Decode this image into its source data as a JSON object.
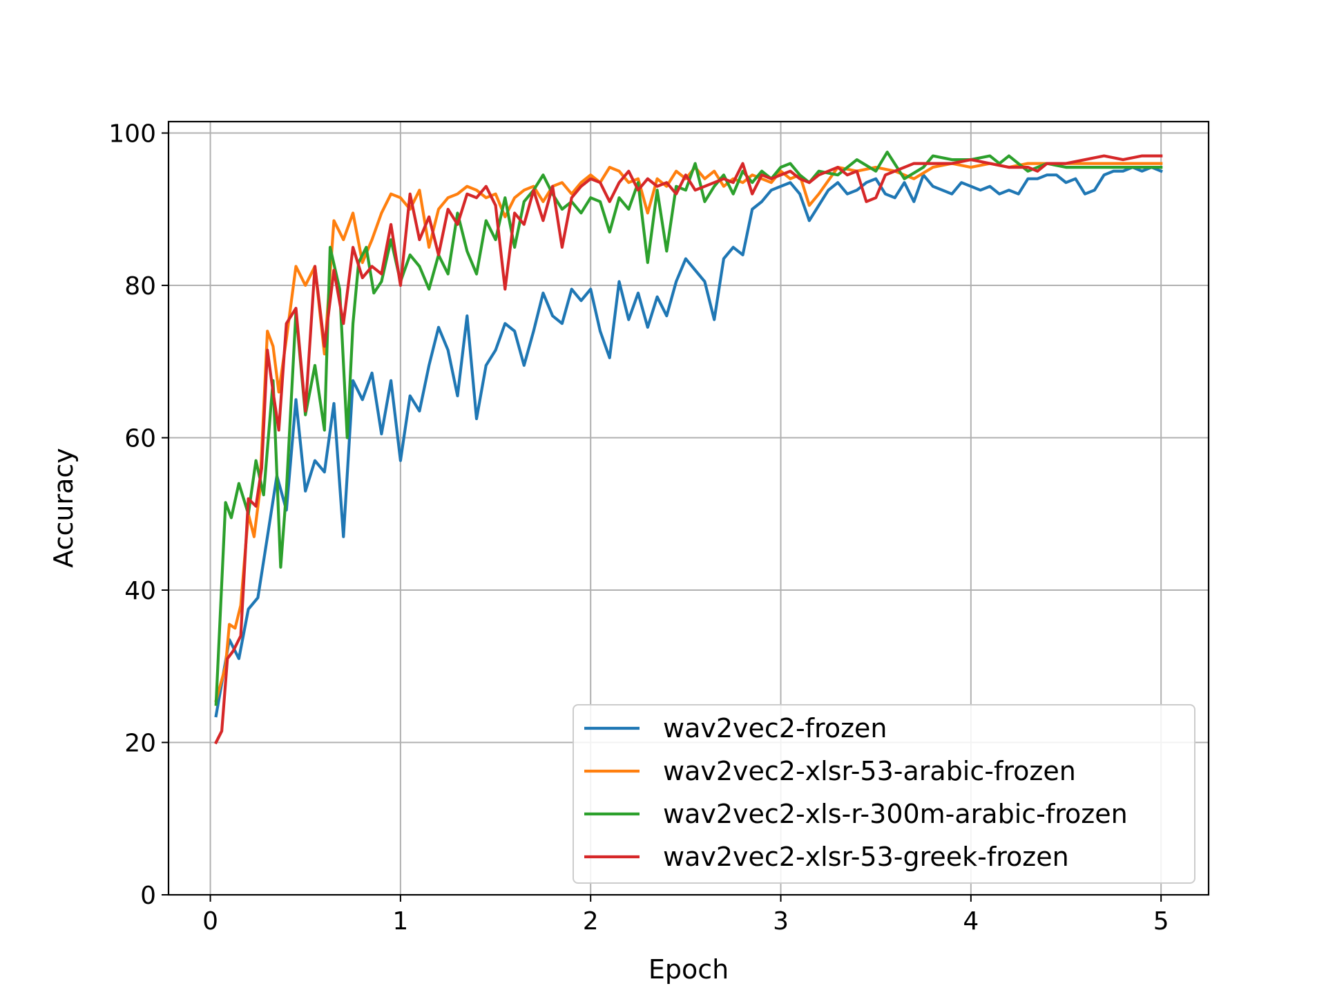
{
  "chart_data": {
    "type": "line",
    "title": "",
    "xlabel": "Epoch",
    "ylabel": "Accuracy",
    "xlim": [
      -0.22,
      5.25
    ],
    "ylim": [
      0,
      101.5
    ],
    "xticks": [
      0,
      1,
      2,
      3,
      4,
      5
    ],
    "yticks": [
      0,
      20,
      40,
      60,
      80,
      100
    ],
    "grid": true,
    "legend_position": "lower right",
    "series": [
      {
        "name": "wav2vec2-frozen",
        "color": "#1f77b4",
        "x": [
          0.03,
          0.1,
          0.15,
          0.2,
          0.25,
          0.3,
          0.35,
          0.4,
          0.45,
          0.5,
          0.55,
          0.6,
          0.65,
          0.7,
          0.75,
          0.8,
          0.85,
          0.9,
          0.95,
          1.0,
          1.05,
          1.1,
          1.15,
          1.2,
          1.25,
          1.3,
          1.35,
          1.4,
          1.45,
          1.5,
          1.55,
          1.6,
          1.65,
          1.7,
          1.75,
          1.8,
          1.85,
          1.9,
          1.95,
          2.0,
          2.05,
          2.1,
          2.15,
          2.2,
          2.25,
          2.3,
          2.35,
          2.4,
          2.45,
          2.5,
          2.55,
          2.6,
          2.65,
          2.7,
          2.75,
          2.8,
          2.85,
          2.9,
          2.95,
          3.0,
          3.05,
          3.1,
          3.15,
          3.2,
          3.25,
          3.3,
          3.35,
          3.4,
          3.45,
          3.5,
          3.55,
          3.6,
          3.65,
          3.7,
          3.75,
          3.8,
          3.85,
          3.9,
          3.95,
          4.0,
          4.05,
          4.1,
          4.15,
          4.2,
          4.25,
          4.3,
          4.35,
          4.4,
          4.45,
          4.5,
          4.55,
          4.6,
          4.65,
          4.7,
          4.75,
          4.8,
          4.85,
          4.9,
          4.95,
          5.0
        ],
        "y": [
          23.5,
          33.5,
          31.0,
          37.5,
          39.0,
          47.0,
          55.0,
          50.5,
          65.0,
          53.0,
          57.0,
          55.5,
          64.5,
          47.0,
          67.5,
          65.0,
          68.5,
          60.5,
          67.5,
          57.0,
          65.5,
          63.5,
          69.5,
          74.5,
          71.5,
          65.5,
          76.0,
          62.5,
          69.5,
          71.5,
          75.0,
          74.0,
          69.5,
          74.0,
          79.0,
          76.0,
          75.0,
          79.5,
          78.0,
          79.5,
          74.0,
          70.5,
          80.5,
          75.5,
          79.0,
          74.5,
          78.5,
          76.0,
          80.5,
          83.5,
          82.0,
          80.5,
          75.5,
          83.5,
          85.0,
          84.0,
          90.0,
          91.0,
          92.5,
          93.0,
          93.5,
          92.0,
          88.5,
          90.5,
          92.5,
          93.5,
          92.0,
          92.5,
          93.5,
          94.0,
          92.0,
          91.5,
          93.5,
          91.0,
          94.5,
          93.0,
          92.5,
          92.0,
          93.5,
          93.0,
          92.5,
          93.0,
          92.0,
          92.5,
          92.0,
          94.0,
          94.0,
          94.5,
          94.5,
          93.5,
          94.0,
          92.0,
          92.5,
          94.5,
          95.0,
          95.0,
          95.5,
          95.0,
          95.5,
          95.0
        ]
      },
      {
        "name": "wav2vec2-xlsr-53-arabic-frozen",
        "color": "#ff7f0e",
        "x": [
          0.03,
          0.08,
          0.1,
          0.13,
          0.16,
          0.2,
          0.23,
          0.26,
          0.3,
          0.33,
          0.36,
          0.4,
          0.45,
          0.5,
          0.55,
          0.6,
          0.65,
          0.7,
          0.75,
          0.8,
          0.85,
          0.9,
          0.95,
          1.0,
          1.05,
          1.1,
          1.15,
          1.2,
          1.25,
          1.3,
          1.35,
          1.4,
          1.45,
          1.5,
          1.55,
          1.6,
          1.65,
          1.7,
          1.75,
          1.8,
          1.85,
          1.9,
          1.95,
          2.0,
          2.05,
          2.1,
          2.15,
          2.2,
          2.25,
          2.3,
          2.35,
          2.4,
          2.45,
          2.5,
          2.55,
          2.6,
          2.65,
          2.7,
          2.75,
          2.8,
          2.85,
          2.9,
          2.95,
          3.0,
          3.05,
          3.1,
          3.15,
          3.2,
          3.3,
          3.4,
          3.5,
          3.6,
          3.7,
          3.8,
          3.9,
          4.0,
          4.1,
          4.2,
          4.3,
          4.4,
          4.5,
          4.6,
          4.7,
          4.8,
          4.9,
          5.0
        ],
        "y": [
          25.5,
          30.0,
          35.5,
          35.0,
          38.0,
          50.0,
          47.0,
          53.0,
          74.0,
          72.0,
          66.0,
          73.0,
          82.5,
          80.0,
          82.5,
          71.0,
          88.5,
          86.0,
          89.5,
          83.0,
          86.0,
          89.5,
          92.0,
          91.5,
          90.0,
          92.5,
          85.0,
          90.0,
          91.5,
          92.0,
          93.0,
          92.5,
          91.5,
          92.0,
          89.0,
          91.5,
          92.5,
          93.0,
          91.0,
          93.0,
          93.5,
          92.0,
          93.5,
          94.5,
          93.5,
          95.5,
          95.0,
          93.5,
          94.0,
          89.5,
          94.0,
          93.0,
          95.0,
          94.0,
          95.5,
          94.0,
          95.0,
          93.0,
          94.0,
          93.5,
          94.5,
          94.0,
          93.5,
          95.0,
          94.0,
          94.5,
          90.5,
          92.0,
          95.5,
          95.0,
          95.5,
          95.0,
          94.0,
          95.5,
          96.0,
          95.5,
          96.0,
          95.5,
          96.0,
          96.0,
          96.0,
          96.0,
          96.0,
          96.0,
          96.0,
          96.0
        ]
      },
      {
        "name": "wav2vec2-xls-r-300m-arabic-frozen",
        "color": "#2ca02c",
        "x": [
          0.03,
          0.08,
          0.11,
          0.15,
          0.2,
          0.24,
          0.28,
          0.33,
          0.37,
          0.4,
          0.45,
          0.5,
          0.55,
          0.6,
          0.63,
          0.68,
          0.72,
          0.75,
          0.78,
          0.82,
          0.86,
          0.9,
          0.95,
          1.0,
          1.05,
          1.1,
          1.15,
          1.2,
          1.25,
          1.3,
          1.35,
          1.4,
          1.45,
          1.5,
          1.55,
          1.6,
          1.65,
          1.7,
          1.75,
          1.8,
          1.85,
          1.9,
          1.95,
          2.0,
          2.05,
          2.1,
          2.15,
          2.2,
          2.25,
          2.3,
          2.35,
          2.4,
          2.45,
          2.5,
          2.55,
          2.6,
          2.65,
          2.7,
          2.75,
          2.8,
          2.85,
          2.9,
          2.95,
          3.0,
          3.05,
          3.1,
          3.15,
          3.2,
          3.3,
          3.4,
          3.5,
          3.56,
          3.65,
          3.75,
          3.8,
          3.9,
          4.0,
          4.1,
          4.15,
          4.2,
          4.3,
          4.4,
          4.5,
          4.6,
          4.7,
          4.8,
          4.9,
          5.0
        ],
        "y": [
          25.0,
          51.5,
          49.5,
          54.0,
          50.0,
          57.0,
          52.5,
          67.5,
          43.0,
          53.0,
          76.5,
          63.0,
          69.5,
          61.0,
          85.0,
          79.5,
          60.0,
          75.0,
          83.0,
          85.0,
          79.0,
          80.5,
          86.0,
          80.5,
          84.0,
          82.5,
          79.5,
          84.0,
          81.5,
          89.5,
          84.5,
          81.5,
          88.5,
          86.0,
          91.5,
          85.0,
          91.0,
          92.5,
          94.5,
          92.0,
          90.0,
          91.0,
          89.5,
          91.5,
          91.0,
          87.0,
          91.5,
          90.0,
          93.5,
          83.0,
          92.5,
          84.5,
          93.0,
          92.5,
          96.0,
          91.0,
          93.0,
          94.5,
          92.0,
          95.0,
          93.5,
          95.0,
          94.0,
          95.5,
          96.0,
          94.5,
          93.5,
          95.0,
          94.5,
          96.5,
          95.0,
          97.5,
          94.0,
          95.5,
          97.0,
          96.5,
          96.5,
          97.0,
          96.0,
          97.0,
          95.0,
          96.0,
          95.5,
          95.5,
          95.5,
          95.5,
          95.5,
          95.5
        ]
      },
      {
        "name": "wav2vec2-xlsr-53-greek-frozen",
        "color": "#d62728",
        "x": [
          0.03,
          0.06,
          0.09,
          0.12,
          0.16,
          0.2,
          0.24,
          0.27,
          0.3,
          0.33,
          0.36,
          0.4,
          0.45,
          0.5,
          0.55,
          0.6,
          0.65,
          0.7,
          0.75,
          0.8,
          0.85,
          0.9,
          0.95,
          1.0,
          1.05,
          1.1,
          1.15,
          1.2,
          1.25,
          1.3,
          1.35,
          1.4,
          1.45,
          1.5,
          1.55,
          1.6,
          1.65,
          1.7,
          1.75,
          1.8,
          1.85,
          1.9,
          1.95,
          2.0,
          2.05,
          2.1,
          2.15,
          2.2,
          2.25,
          2.3,
          2.35,
          2.4,
          2.45,
          2.5,
          2.55,
          2.6,
          2.65,
          2.7,
          2.75,
          2.8,
          2.85,
          2.9,
          2.95,
          3.0,
          3.05,
          3.1,
          3.15,
          3.2,
          3.25,
          3.3,
          3.35,
          3.4,
          3.45,
          3.5,
          3.55,
          3.6,
          3.7,
          3.8,
          3.9,
          4.0,
          4.1,
          4.2,
          4.3,
          4.35,
          4.4,
          4.5,
          4.6,
          4.7,
          4.8,
          4.9,
          5.0
        ],
        "y": [
          20.0,
          21.5,
          31.0,
          32.0,
          34.0,
          52.0,
          51.0,
          56.0,
          71.5,
          66.0,
          61.0,
          75.0,
          77.0,
          63.5,
          82.5,
          72.0,
          82.0,
          75.0,
          85.0,
          81.0,
          82.5,
          81.5,
          88.0,
          80.0,
          92.0,
          86.0,
          89.0,
          84.0,
          90.0,
          88.0,
          92.0,
          91.5,
          93.0,
          90.5,
          79.5,
          89.5,
          88.0,
          92.5,
          88.5,
          93.0,
          85.0,
          91.5,
          93.0,
          94.0,
          93.5,
          91.0,
          93.5,
          95.0,
          92.5,
          94.0,
          93.0,
          93.5,
          92.0,
          94.5,
          92.5,
          93.0,
          93.5,
          94.0,
          93.5,
          96.0,
          92.0,
          94.5,
          94.0,
          94.5,
          95.0,
          94.0,
          93.5,
          94.5,
          95.0,
          95.5,
          94.5,
          95.0,
          91.0,
          91.5,
          94.5,
          95.0,
          96.0,
          96.0,
          96.0,
          96.5,
          96.0,
          95.5,
          95.5,
          95.0,
          96.0,
          96.0,
          96.5,
          97.0,
          96.5,
          97.0,
          97.0
        ]
      }
    ]
  }
}
